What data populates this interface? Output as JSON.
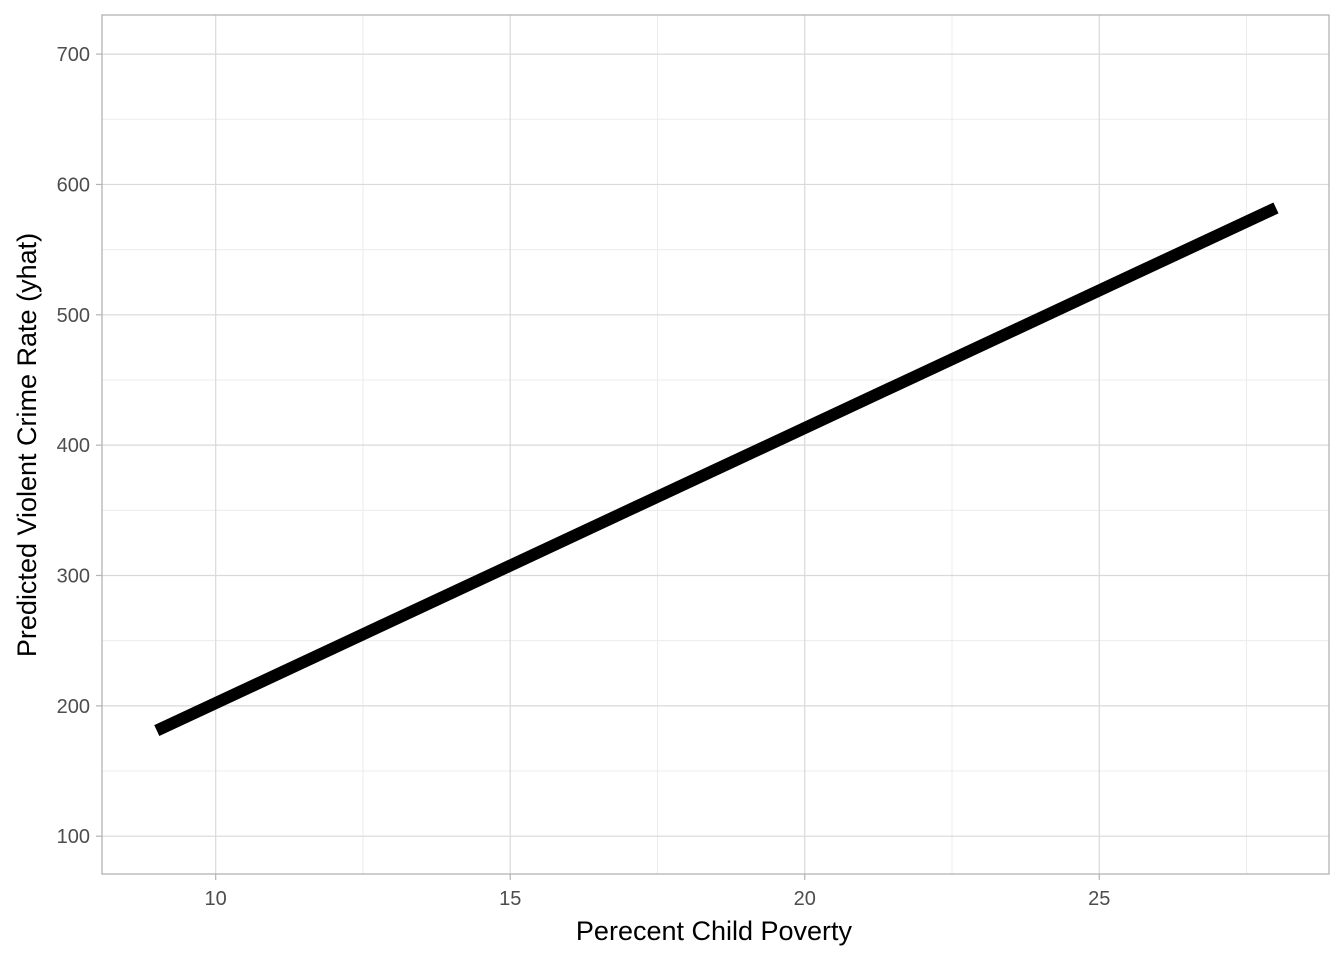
{
  "chart_data": {
    "type": "line",
    "title": "",
    "xlabel": "Perecent Child Poverty",
    "ylabel": "Predicted Violent Crime Rate (yhat)",
    "xlim": [
      8.07,
      28.9
    ],
    "ylim": [
      71,
      730
    ],
    "x_ticks": [
      10,
      15,
      20,
      25
    ],
    "x_tick_labels": [
      "10",
      "15",
      "20",
      "25"
    ],
    "x_minor_ticks": [
      12.5,
      17.5,
      22.5,
      27.5
    ],
    "y_ticks": [
      100,
      200,
      300,
      400,
      500,
      600,
      700
    ],
    "y_tick_labels": [
      "100",
      "200",
      "300",
      "400",
      "500",
      "600",
      "700"
    ],
    "y_minor_ticks": [
      150,
      250,
      350,
      450,
      550,
      650
    ],
    "grid": true,
    "series": [
      {
        "name": "yhat",
        "color": "#000000",
        "x": [
          9.0,
          28.0
        ],
        "y": [
          181,
          582
        ]
      }
    ],
    "colors": {
      "panel_border": "#b3b3b3",
      "grid_major": "#d9d9d9",
      "grid_minor": "#ececec",
      "tick_text": "#4d4d4d",
      "line": "#000000"
    }
  }
}
